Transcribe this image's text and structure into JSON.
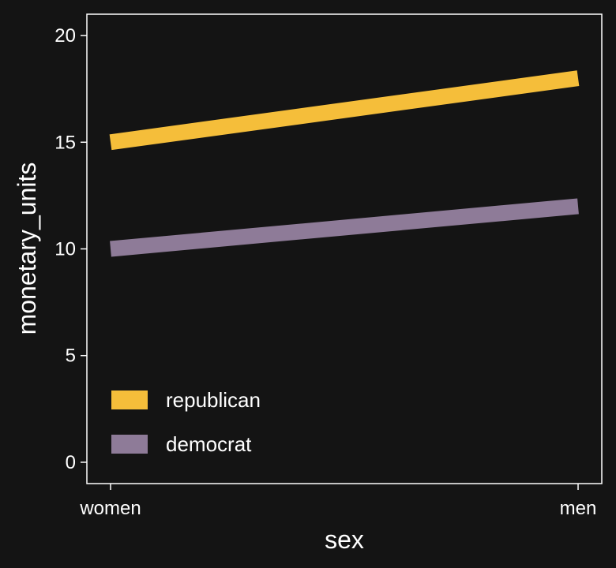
{
  "colors": {
    "background": "#141414",
    "panel_border": "#ffffff",
    "text": "#ffffff"
  },
  "chart_data": {
    "type": "line",
    "categories": [
      "women",
      "men"
    ],
    "series": [
      {
        "name": "republican",
        "values": [
          15,
          18
        ],
        "color": "#F5BE3A"
      },
      {
        "name": "democrat",
        "values": [
          10,
          12
        ],
        "color": "#8E7B98"
      }
    ],
    "xlabel": "sex",
    "ylabel": "monetary_units",
    "ylim": [
      -1,
      21
    ],
    "yticks": [
      0,
      5,
      10,
      15,
      20
    ],
    "grid": false,
    "legend_position": "bottom-left inside"
  }
}
